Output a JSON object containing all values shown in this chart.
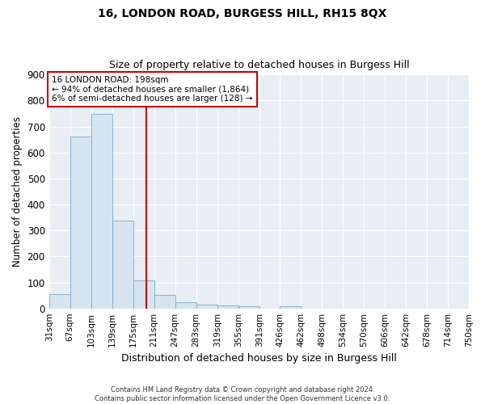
{
  "title": "16, LONDON ROAD, BURGESS HILL, RH15 8QX",
  "subtitle": "Size of property relative to detached houses in Burgess Hill",
  "xlabel": "Distribution of detached houses by size in Burgess Hill",
  "ylabel": "Number of detached properties",
  "bin_labels": [
    "31sqm",
    "67sqm",
    "103sqm",
    "139sqm",
    "175sqm",
    "211sqm",
    "247sqm",
    "283sqm",
    "319sqm",
    "355sqm",
    "391sqm",
    "426sqm",
    "462sqm",
    "498sqm",
    "534sqm",
    "570sqm",
    "606sqm",
    "642sqm",
    "678sqm",
    "714sqm",
    "750sqm"
  ],
  "bar_values": [
    55,
    660,
    748,
    338,
    108,
    52,
    25,
    14,
    12,
    8,
    0,
    8,
    0,
    0,
    0,
    0,
    0,
    0,
    0,
    0
  ],
  "bin_edges": [
    31,
    67,
    103,
    139,
    175,
    211,
    247,
    283,
    319,
    355,
    391,
    426,
    462,
    498,
    534,
    570,
    606,
    642,
    678,
    714,
    750
  ],
  "bar_color": "#d6e4f0",
  "bar_edge_color": "#7aaac8",
  "vline_x": 198,
  "vline_color": "#cc0000",
  "annotation_text": "16 LONDON ROAD: 198sqm\n← 94% of detached houses are smaller (1,864)\n6% of semi-detached houses are larger (128) →",
  "annotation_box_color": "#cc0000",
  "ylim": [
    0,
    900
  ],
  "yticks": [
    0,
    100,
    200,
    300,
    400,
    500,
    600,
    700,
    800,
    900
  ],
  "footer_text": "Contains HM Land Registry data © Crown copyright and database right 2024.\nContains public sector information licensed under the Open Government Licence v3.0.",
  "bg_color": "#ffffff",
  "plot_bg_color": "#e8eef5",
  "title_fontsize": 10,
  "subtitle_fontsize": 9
}
